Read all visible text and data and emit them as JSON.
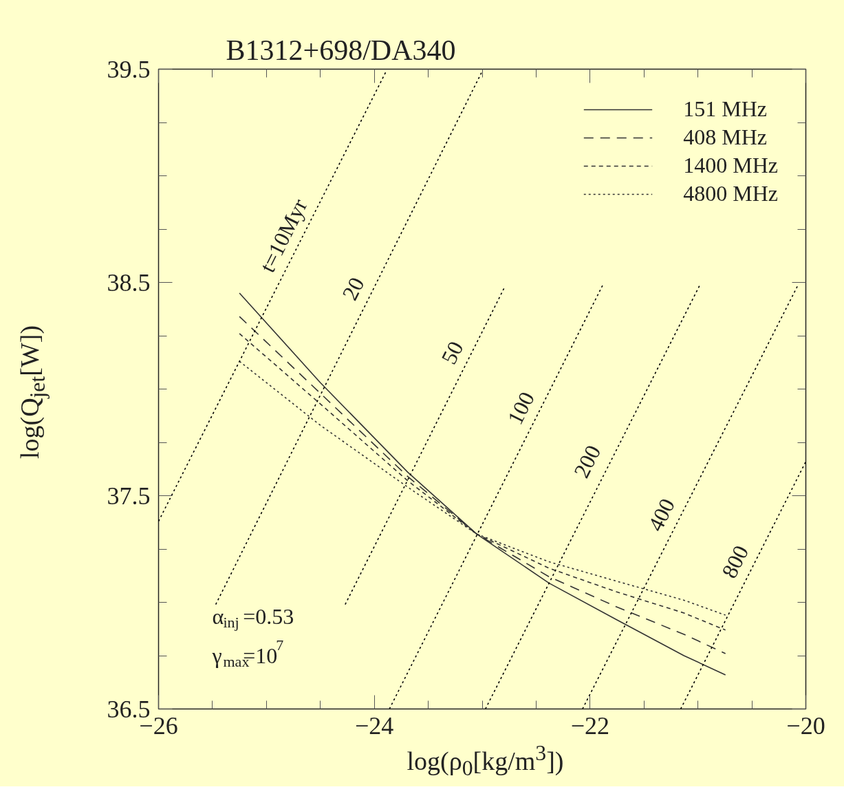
{
  "chart_data": {
    "type": "line",
    "title": "B1312+698/DA340",
    "xlabel": "log(ρ$_{0}$[kg/m$^{3}$])",
    "ylabel": "log(Q$_{jet}$[W])",
    "xlim": [
      -26,
      -20
    ],
    "ylim": [
      36.5,
      39.5
    ],
    "xticks": [
      -26,
      {
        "value": -25.5,
        "label": null
      },
      {
        "value": -25,
        "label": null
      },
      {
        "value": -24.5,
        "label": null
      },
      -24,
      {
        "value": -23.5,
        "label": null
      },
      {
        "value": -23,
        "label": null
      },
      {
        "value": -22.5,
        "label": null
      },
      -22,
      {
        "value": -21.5,
        "label": null
      },
      {
        "value": -21,
        "label": null
      },
      {
        "value": -20.5,
        "label": null
      },
      -20
    ],
    "yticks": [
      36.5,
      {
        "value": 36.75,
        "label": null
      },
      {
        "value": 37,
        "label": null
      },
      {
        "value": 37.25,
        "label": null
      },
      37.5,
      {
        "value": 37.75,
        "label": null
      },
      {
        "value": 38,
        "label": null
      },
      {
        "value": 38.25,
        "label": null
      },
      38.5,
      {
        "value": 38.75,
        "label": null
      },
      {
        "value": 39,
        "label": null
      },
      {
        "value": 39.25,
        "label": null
      },
      39.5
    ],
    "grid": false,
    "legend": "top right",
    "marker": "none",
    "series": [
      {
        "name": "151 MHz",
        "color": "#333333",
        "line_style": "solid",
        "x": [
          -25.25,
          -24.5,
          -23.69,
          -23.05,
          -22.38,
          -21.76,
          -21.13,
          -20.745
        ],
        "values": [
          38.45,
          38.03,
          37.61,
          37.32,
          37.09,
          36.92,
          36.75,
          36.66
        ]
      },
      {
        "name": "408 MHz",
        "color": "#333333",
        "line_style": "dashed",
        "x": [
          -25.25,
          -24.5,
          -23.69,
          -23.05,
          -22.38,
          -21.76,
          -21.13,
          -20.745
        ],
        "values": [
          38.34,
          37.98,
          37.59,
          37.32,
          37.12,
          36.98,
          36.85,
          36.76
        ]
      },
      {
        "name": "1400 MHz",
        "color": "#333333",
        "line_style": "dashed",
        "x": [
          -25.25,
          -24.5,
          -23.69,
          -23.05,
          -22.38,
          -21.76,
          -21.13,
          -20.745
        ],
        "values": [
          38.26,
          37.93,
          37.57,
          37.32,
          37.16,
          37.05,
          36.95,
          36.87
        ]
      },
      {
        "name": "4800 MHz",
        "color": "#333333",
        "line_style": "dotted",
        "x": [
          -25.25,
          -24.5,
          -23.69,
          -23.05,
          -22.38,
          -21.76,
          -21.13,
          -20.745
        ],
        "values": [
          38.13,
          37.83,
          37.54,
          37.32,
          37.19,
          37.1,
          37.01,
          36.94
        ]
      },
      {
        "color": "#000000",
        "line_style": "dotted",
        "x": [
          -26,
          -23.89
        ],
        "values": [
          37.38,
          39.49
        ]
      },
      {
        "color": "#000000",
        "line_style": "dotted",
        "x": [
          -25.47,
          -23.0
        ],
        "values": [
          36.99,
          39.49
        ]
      },
      {
        "color": "#000000",
        "line_style": "dotted",
        "x": [
          -24.27,
          -22.79
        ],
        "values": [
          36.99,
          38.48
        ]
      },
      {
        "color": "#000000",
        "line_style": "dotted",
        "x": [
          -23.86,
          -21.88
        ],
        "values": [
          36.5,
          38.49
        ]
      },
      {
        "color": "#000000",
        "line_style": "dotted",
        "x": [
          -22.97,
          -20.98
        ],
        "values": [
          36.5,
          38.49
        ]
      },
      {
        "color": "#000000",
        "line_style": "dotted",
        "x": [
          -22.07,
          -20.07
        ],
        "values": [
          36.5,
          38.49
        ]
      },
      {
        "color": "#000000",
        "line_style": "dotted",
        "x": [
          -21.16,
          -20.0
        ],
        "values": [
          36.5,
          37.66
        ]
      }
    ],
    "annotations": [
      {
        "text": "t=10Myr",
        "x": -24.664,
        "y": 38.72
      },
      {
        "text": "20",
        "x": -24.015,
        "y": 38.47
      },
      {
        "text": "50",
        "x": -23.097,
        "y": 38.17
      },
      {
        "text": "100",
        "x": -22.46,
        "y": 37.91
      },
      {
        "text": "200",
        "x": -21.846,
        "y": 37.66
      },
      {
        "text": "400",
        "x": -21.158,
        "y": 37.41
      },
      {
        "text": "800",
        "x": -20.475,
        "y": 37.19
      },
      "α$_{inj}$=0.53",
      "γ$_{max}$=10$^{7}$"
    ]
  }
}
